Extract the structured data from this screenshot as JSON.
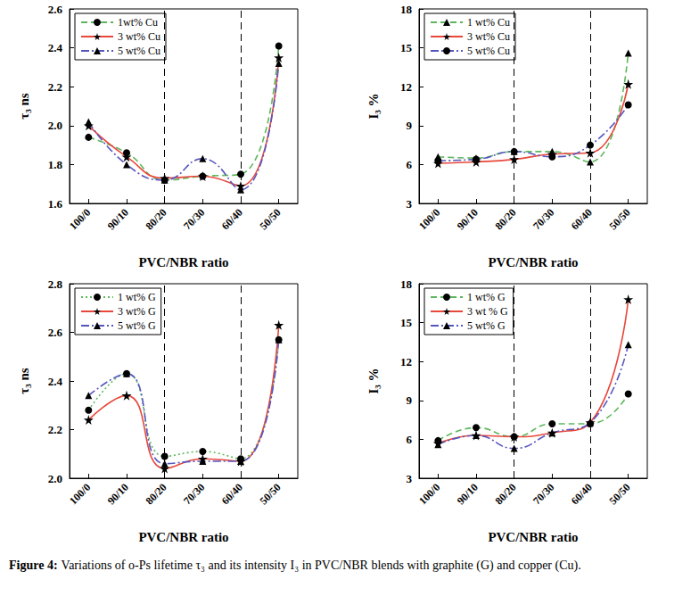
{
  "caption": {
    "label": "Figure 4:",
    "text": "Variations of o-Ps lifetime τ₃ and its intensity I₃ in PVC/NBR blends with graphite (G) and copper (Cu)."
  },
  "chart_data": [
    {
      "type": "line",
      "xlabel": "PVC/NBR ratio",
      "ylabel": "τ₃ ns",
      "categories": [
        "100/0",
        "90/10",
        "80/20",
        "70/30",
        "60/40",
        "50/50"
      ],
      "vlines": [
        "80/20",
        "60/40"
      ],
      "ylim": [
        1.6,
        2.6
      ],
      "yticks": [
        1.6,
        1.8,
        {
          "value": 2,
          "label": "2.0"
        },
        2.2,
        2.4,
        2.6
      ],
      "grid": false,
      "legend": "upper left",
      "series": [
        {
          "name": "1wt% Cu",
          "color": "#5cb85c",
          "marker": "circle",
          "line_style": "dashed",
          "values": [
            1.94,
            1.86,
            1.72,
            1.74,
            1.75,
            2.41
          ]
        },
        {
          "name": "3 wt% Cu",
          "color": "#e8483b",
          "marker": "star",
          "line_style": "solid",
          "values": [
            2.0,
            1.84,
            1.73,
            1.74,
            1.69,
            2.35
          ]
        },
        {
          "name": "5 wt% Cu",
          "color": "#5656c0",
          "marker": "triangle",
          "line_style": "dashdot",
          "values": [
            2.02,
            1.8,
            1.72,
            1.83,
            1.67,
            2.32
          ]
        }
      ]
    },
    {
      "type": "line",
      "xlabel": "PVC/NBR ratio",
      "ylabel": "I₃ %",
      "categories": [
        "100/0",
        "90/10",
        "80/20",
        "70/30",
        "60/40",
        "50/50"
      ],
      "vlines": [
        "80/20",
        "60/40"
      ],
      "ylim": [
        3,
        18
      ],
      "yticks": [
        3,
        6,
        9,
        12,
        15,
        18
      ],
      "grid": false,
      "legend": "upper left",
      "series": [
        {
          "name": "1 wt% Cu",
          "color": "#5cb85c",
          "marker": "triangle",
          "line_style": "dashed",
          "values": [
            6.6,
            6.5,
            7.0,
            7.0,
            6.2,
            14.6
          ]
        },
        {
          "name": "3 wt% Cu",
          "color": "#e8483b",
          "marker": "star",
          "line_style": "solid",
          "values": [
            6.1,
            6.2,
            6.4,
            6.8,
            6.9,
            12.2
          ]
        },
        {
          "name": "5 wt% Cu",
          "color": "#5656c0",
          "marker": "circle",
          "line_style": "dashdot",
          "values": [
            6.3,
            6.4,
            7.0,
            6.6,
            7.5,
            10.6
          ]
        }
      ]
    },
    {
      "type": "line",
      "xlabel": "PVC/NBR ratio",
      "ylabel": "τ₃ ns",
      "categories": [
        "100/0",
        "90/10",
        "80/20",
        "70/30",
        "60/40",
        "50/50"
      ],
      "vlines": [
        "80/20",
        "60/40"
      ],
      "ylim": [
        2,
        2.8
      ],
      "yticks": [
        {
          "value": 2,
          "label": "2.0"
        },
        2.2,
        2.4,
        2.6,
        2.8
      ],
      "grid": false,
      "legend": "upper left",
      "series": [
        {
          "name": "1 wt% G",
          "color": "#5cb85c",
          "marker": "circle",
          "line_style": "dotted",
          "values": [
            2.28,
            2.43,
            2.09,
            2.11,
            2.08,
            2.57
          ]
        },
        {
          "name": "3 wt% G",
          "color": "#e8483b",
          "marker": "star",
          "line_style": "solid",
          "values": [
            2.24,
            2.34,
            2.04,
            2.08,
            2.07,
            2.63
          ]
        },
        {
          "name": "5 wt% G",
          "color": "#5656c0",
          "marker": "triangle",
          "line_style": "dashdot",
          "values": [
            2.34,
            2.43,
            2.06,
            2.07,
            2.07,
            2.57
          ]
        }
      ]
    },
    {
      "type": "line",
      "xlabel": "PVC/NBR ratio",
      "ylabel": "I₃ %",
      "categories": [
        "100/0",
        "90/10",
        "80/20",
        "70/30",
        "60/40",
        "50/50"
      ],
      "vlines": [
        "80/20",
        "60/40"
      ],
      "ylim": [
        3,
        18
      ],
      "yticks": [
        3,
        6,
        9,
        12,
        15,
        18
      ],
      "grid": false,
      "legend": "upper left",
      "series": [
        {
          "name": "1 wt% G",
          "color": "#5cb85c",
          "marker": "circle",
          "line_style": "dashed",
          "values": [
            5.9,
            6.9,
            6.2,
            7.2,
            7.2,
            9.5
          ]
        },
        {
          "name": "3 wt % G",
          "color": "#e8483b",
          "marker": "star",
          "line_style": "solid",
          "values": [
            5.7,
            6.3,
            6.2,
            6.5,
            7.3,
            16.8
          ]
        },
        {
          "name": "5 wt% G",
          "color": "#5656c0",
          "marker": "triangle",
          "line_style": "dashdot",
          "values": [
            5.6,
            6.3,
            5.3,
            6.5,
            7.3,
            13.3
          ]
        }
      ]
    }
  ]
}
